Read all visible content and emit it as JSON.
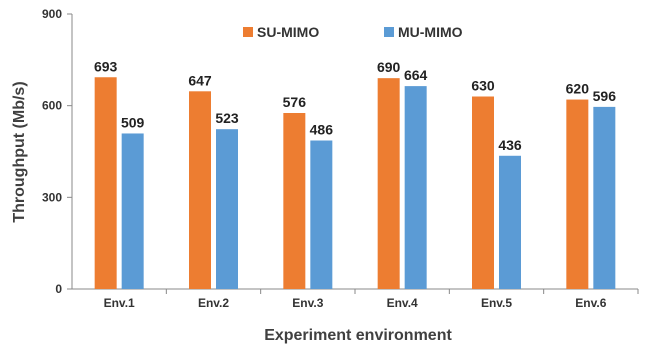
{
  "chart_data": {
    "type": "bar",
    "categories": [
      "Env.1",
      "Env.2",
      "Env.3",
      "Env.4",
      "Env.5",
      "Env.6"
    ],
    "series": [
      {
        "name": "SU-MIMO",
        "values": [
          693,
          647,
          576,
          690,
          630,
          620
        ],
        "color": "#ED7D31"
      },
      {
        "name": "MU-MIMO",
        "values": [
          509,
          523,
          486,
          664,
          436,
          596
        ],
        "color": "#5B9BD5"
      }
    ],
    "xlabel": "Experiment environment",
    "ylabel": "Throughput (Mb/s)",
    "ylim": [
      0,
      900
    ],
    "yticks": [
      0,
      300,
      600,
      900
    ],
    "grid": false,
    "legend": "top"
  }
}
